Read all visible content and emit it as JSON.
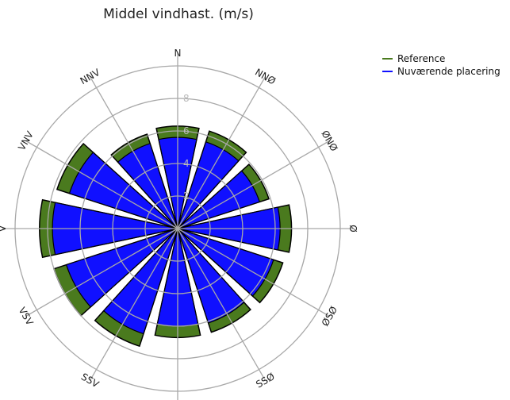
{
  "chart_data": {
    "type": "polar-bar",
    "title": "Middel vindhast. (m/s)",
    "radial_ticks": [
      "2",
      "4",
      "6",
      "8"
    ],
    "rmax": 10,
    "directions": [
      "N",
      "NNØ",
      "ØNØ",
      "Ø",
      "ØSØ",
      "SSØ",
      "S",
      "SSV",
      "VSV",
      "V",
      "VNV",
      "NNV"
    ],
    "direction_angles_deg": [
      0,
      30,
      60,
      90,
      120,
      150,
      180,
      210,
      240,
      270,
      300,
      330
    ],
    "series": [
      {
        "name": "Reference",
        "color": "#4a7a1e",
        "values": [
          6.3,
          6.3,
          5.9,
          7.0,
          6.8,
          6.7,
          6.7,
          7.6,
          8.0,
          8.5,
          7.8,
          6.1
        ]
      },
      {
        "name": "Nuværende placering",
        "color": "#1010ff",
        "values": [
          5.6,
          5.6,
          5.3,
          6.3,
          6.2,
          6.1,
          6.0,
          6.8,
          7.2,
          7.7,
          7.0,
          5.5
        ]
      }
    ]
  }
}
